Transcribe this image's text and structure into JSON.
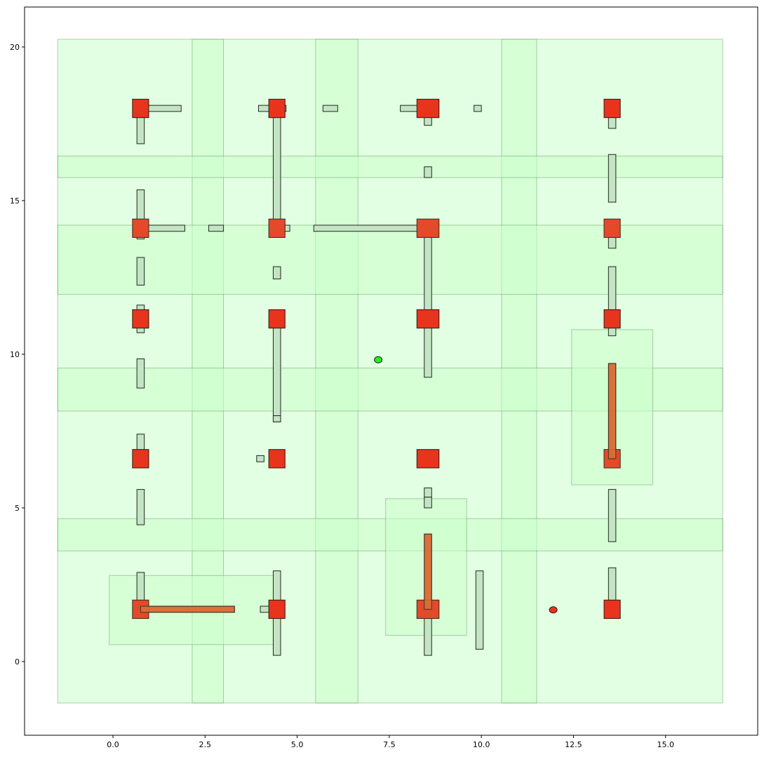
{
  "chart_data": {
    "type": "scatter",
    "title": "",
    "xlabel": "",
    "ylabel": "",
    "xlim": [
      -2.4,
      17.5
    ],
    "ylim": [
      -2.4,
      21.3
    ],
    "xticks": [
      0.0,
      2.5,
      5.0,
      7.5,
      10.0,
      12.5,
      15.0
    ],
    "xtick_labels": [
      "0.0",
      "2.5",
      "5.0",
      "7.5",
      "10.0",
      "12.5",
      "15.0"
    ],
    "yticks": [
      0,
      5,
      10,
      15,
      20
    ],
    "ytick_labels": [
      "0",
      "5",
      "10",
      "15",
      "20"
    ],
    "grid": false,
    "colors": {
      "zone_fill": "#ccffcc",
      "zone_stroke": "#2f6f2f",
      "node_fill": "#e8341c",
      "bar_fill": "#c5e4c5",
      "orange_bar": "#d9622a",
      "point_green": "#22ee22",
      "point_red": "#e8341c"
    },
    "background": {
      "x0": -1.5,
      "x1": 16.55,
      "y0": -1.35,
      "y1": 20.25
    },
    "vertical_bands": [
      {
        "x0": 2.15,
        "x1": 3.0
      },
      {
        "x0": 5.5,
        "x1": 6.65
      },
      {
        "x0": 10.55,
        "x1": 11.5
      }
    ],
    "horizontal_bands": [
      {
        "y0": 15.75,
        "y1": 16.45
      },
      {
        "y0": 11.95,
        "y1": 14.2
      },
      {
        "y0": 8.15,
        "y1": 9.55
      },
      {
        "y0": 3.6,
        "y1": 4.65
      }
    ],
    "regions": [
      {
        "x0": -0.1,
        "x1": 4.45,
        "y0": 0.55,
        "y1": 2.8
      },
      {
        "x0": 7.4,
        "x1": 9.6,
        "y0": 0.85,
        "y1": 5.3
      },
      {
        "x0": 12.45,
        "x1": 14.65,
        "y0": 5.75,
        "y1": 10.8
      }
    ],
    "nodes": [
      {
        "x": 0.75,
        "y": 18.0
      },
      {
        "x": 4.45,
        "y": 18.0
      },
      {
        "x": 8.55,
        "y": 18.0
      },
      {
        "x": 13.55,
        "y": 18.0
      },
      {
        "x": 0.75,
        "y": 14.1
      },
      {
        "x": 4.45,
        "y": 14.1
      },
      {
        "x": 8.55,
        "y": 14.1
      },
      {
        "x": 13.55,
        "y": 14.1
      },
      {
        "x": 0.75,
        "y": 11.15
      },
      {
        "x": 4.45,
        "y": 11.15
      },
      {
        "x": 8.55,
        "y": 11.15
      },
      {
        "x": 13.55,
        "y": 11.15
      },
      {
        "x": 0.75,
        "y": 6.6
      },
      {
        "x": 4.45,
        "y": 6.6
      },
      {
        "x": 8.55,
        "y": 6.6
      },
      {
        "x": 13.55,
        "y": 6.6
      },
      {
        "x": 0.75,
        "y": 1.7
      },
      {
        "x": 4.45,
        "y": 1.7
      },
      {
        "x": 8.55,
        "y": 1.7
      },
      {
        "x": 13.55,
        "y": 1.7
      }
    ],
    "segments": [
      {
        "x0": 0.75,
        "x1": 1.85,
        "y0": 17.9,
        "y1": 18.1,
        "color": "green"
      },
      {
        "x0": 0.65,
        "x1": 0.85,
        "y0": 16.85,
        "y1": 17.9,
        "color": "green"
      },
      {
        "x0": 3.95,
        "x1": 4.7,
        "y0": 17.9,
        "y1": 18.1,
        "color": "green"
      },
      {
        "x0": 4.35,
        "x1": 4.55,
        "y0": 14.1,
        "y1": 18.0,
        "color": "green"
      },
      {
        "x0": 5.7,
        "x1": 6.1,
        "y0": 17.9,
        "y1": 18.1,
        "color": "green"
      },
      {
        "x0": 7.8,
        "x1": 8.55,
        "y0": 17.9,
        "y1": 18.1,
        "color": "green"
      },
      {
        "x0": 8.45,
        "x1": 8.65,
        "y0": 17.45,
        "y1": 17.8,
        "color": "green"
      },
      {
        "x0": 9.8,
        "x1": 10.0,
        "y0": 17.9,
        "y1": 18.1,
        "color": "green"
      },
      {
        "x0": 13.45,
        "x1": 13.65,
        "y0": 17.35,
        "y1": 17.8,
        "color": "green"
      },
      {
        "x0": 8.45,
        "x1": 8.65,
        "y0": 15.75,
        "y1": 16.1,
        "color": "green"
      },
      {
        "x0": 13.45,
        "x1": 13.65,
        "y0": 14.95,
        "y1": 16.5,
        "color": "green"
      },
      {
        "x0": 0.65,
        "x1": 0.85,
        "y0": 13.75,
        "y1": 15.35,
        "color": "green"
      },
      {
        "x0": 0.75,
        "x1": 1.95,
        "y0": 14.0,
        "y1": 14.2,
        "color": "green"
      },
      {
        "x0": 2.6,
        "x1": 3.0,
        "y0": 14.0,
        "y1": 14.2,
        "color": "green"
      },
      {
        "x0": 4.45,
        "x1": 4.8,
        "y0": 14.0,
        "y1": 14.2,
        "color": "green"
      },
      {
        "x0": 5.45,
        "x1": 8.55,
        "y0": 14.0,
        "y1": 14.2,
        "color": "green"
      },
      {
        "x0": 8.45,
        "x1": 8.65,
        "y0": 9.25,
        "y1": 14.1,
        "color": "green"
      },
      {
        "x0": 13.45,
        "x1": 13.65,
        "y0": 13.45,
        "y1": 14.0,
        "color": "green"
      },
      {
        "x0": 0.65,
        "x1": 0.85,
        "y0": 12.25,
        "y1": 13.15,
        "color": "green"
      },
      {
        "x0": 4.35,
        "x1": 4.55,
        "y0": 12.45,
        "y1": 12.85,
        "color": "green"
      },
      {
        "x0": 13.45,
        "x1": 13.65,
        "y0": 10.6,
        "y1": 12.85,
        "color": "green"
      },
      {
        "x0": 0.65,
        "x1": 0.85,
        "y0": 10.7,
        "y1": 11.6,
        "color": "green"
      },
      {
        "x0": 4.35,
        "x1": 4.55,
        "y0": 7.8,
        "y1": 11.15,
        "color": "green"
      },
      {
        "x0": 4.35,
        "x1": 4.55,
        "y0": 7.8,
        "y1": 8.0,
        "color": "green"
      },
      {
        "x0": 0.65,
        "x1": 0.85,
        "y0": 8.9,
        "y1": 9.85,
        "color": "green"
      },
      {
        "x0": 0.65,
        "x1": 0.85,
        "y0": 6.65,
        "y1": 7.4,
        "color": "green"
      },
      {
        "x0": 3.9,
        "x1": 4.1,
        "y0": 6.5,
        "y1": 6.7,
        "color": "green"
      },
      {
        "x0": 0.65,
        "x1": 0.85,
        "y0": 4.45,
        "y1": 5.6,
        "color": "green"
      },
      {
        "x0": 8.45,
        "x1": 8.65,
        "y0": 5.35,
        "y1": 5.65,
        "color": "green"
      },
      {
        "x0": 8.45,
        "x1": 8.65,
        "y0": 5.0,
        "y1": 5.35,
        "color": "green"
      },
      {
        "x0": 13.45,
        "x1": 13.65,
        "y0": 3.9,
        "y1": 5.6,
        "color": "green"
      },
      {
        "x0": 0.65,
        "x1": 0.85,
        "y0": 1.7,
        "y1": 2.9,
        "color": "green"
      },
      {
        "x0": 4.35,
        "x1": 4.55,
        "y0": 0.2,
        "y1": 2.95,
        "color": "green"
      },
      {
        "x0": 4.0,
        "x1": 4.45,
        "y0": 1.6,
        "y1": 1.8,
        "color": "green"
      },
      {
        "x0": 8.45,
        "x1": 8.65,
        "y0": 0.2,
        "y1": 1.7,
        "color": "green"
      },
      {
        "x0": 9.85,
        "x1": 10.05,
        "y0": 0.4,
        "y1": 2.95,
        "color": "green"
      },
      {
        "x0": 13.45,
        "x1": 13.65,
        "y0": 1.7,
        "y1": 3.05,
        "color": "green"
      },
      {
        "x0": 0.75,
        "x1": 3.3,
        "y0": 1.6,
        "y1": 1.8,
        "color": "orange"
      },
      {
        "x0": 8.45,
        "x1": 8.65,
        "y0": 1.7,
        "y1": 4.15,
        "color": "orange"
      },
      {
        "x0": 13.45,
        "x1": 13.65,
        "y0": 6.6,
        "y1": 9.7,
        "color": "orange"
      }
    ],
    "points": [
      {
        "x": 7.2,
        "y": 9.82,
        "color": "green"
      },
      {
        "x": 11.95,
        "y": 1.68,
        "color": "red"
      }
    ]
  }
}
